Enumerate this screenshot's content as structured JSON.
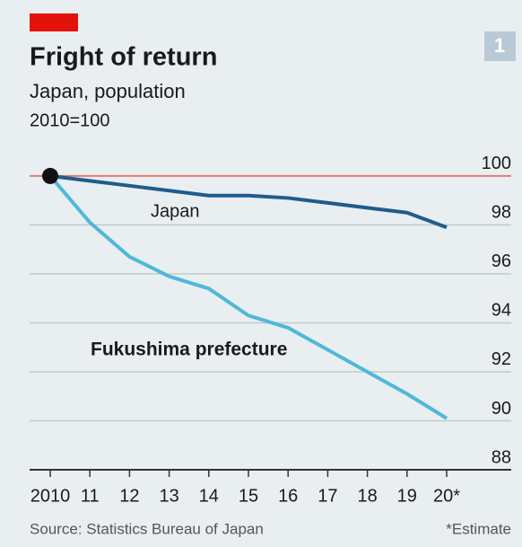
{
  "chart_data": {
    "type": "line",
    "title": "Fright of return",
    "subtitle": "Japan, population",
    "unit_note": "2010=100",
    "badge": "1",
    "categories": [
      "2010",
      "11",
      "12",
      "13",
      "14",
      "15",
      "16",
      "17",
      "18",
      "19",
      "20*"
    ],
    "series": [
      {
        "name": "Japan",
        "color": "#1f5c8b",
        "values": [
          100,
          99.8,
          99.6,
          99.4,
          99.2,
          99.2,
          99.1,
          98.9,
          98.7,
          98.5,
          97.9
        ]
      },
      {
        "name": "Fukushima prefecture",
        "color": "#4fb8d8",
        "values": [
          100,
          98.1,
          96.7,
          95.9,
          95.4,
          94.3,
          93.8,
          92.9,
          92.0,
          91.1,
          90.1
        ]
      }
    ],
    "ylim": [
      88,
      100.4
    ],
    "yticks": [
      88,
      90,
      92,
      94,
      96,
      98,
      100
    ],
    "grid": true,
    "reference_line": {
      "value": 100,
      "color": "#e47b7b"
    },
    "source": "Source: Statistics Bureau of Japan",
    "footnote": "*Estimate"
  }
}
